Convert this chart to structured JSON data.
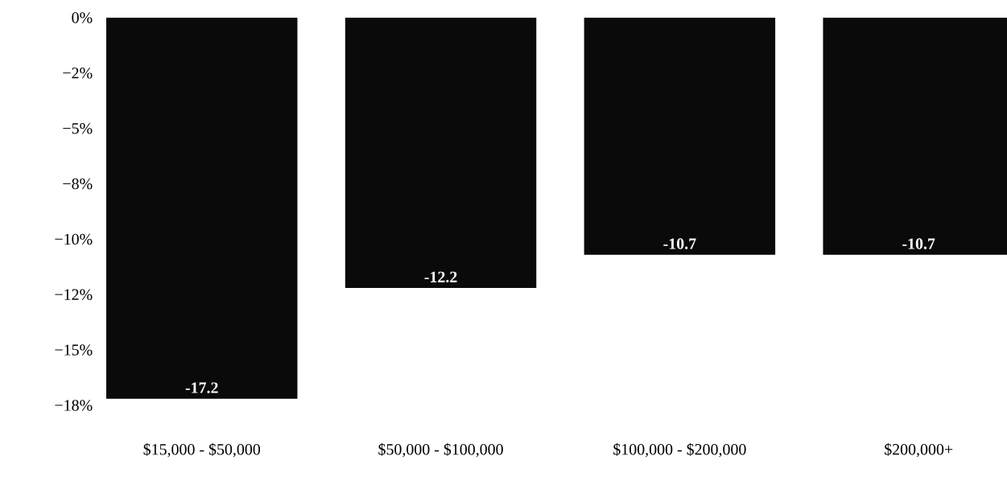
{
  "chart_data": {
    "type": "bar",
    "categories": [
      "$15,000 - $50,000",
      "$50,000 - $100,000",
      "$100,000 - $200,000",
      "$200,000+"
    ],
    "values": [
      -17.2,
      -12.2,
      -10.7,
      -10.7
    ],
    "color": "#0a0a0a",
    "ylim": [
      -17.5,
      0
    ],
    "yticks": [
      {
        "value": 0,
        "label": "0%"
      },
      {
        "value": -2.5,
        "label": "−2%"
      },
      {
        "value": -5,
        "label": "−5%"
      },
      {
        "value": -7.5,
        "label": "−8%"
      },
      {
        "value": -10,
        "label": "−10%"
      },
      {
        "value": -12.5,
        "label": "−12%"
      },
      {
        "value": -15,
        "label": "−15%"
      },
      {
        "value": -17.5,
        "label": "−18%"
      }
    ],
    "data_labels": true
  }
}
